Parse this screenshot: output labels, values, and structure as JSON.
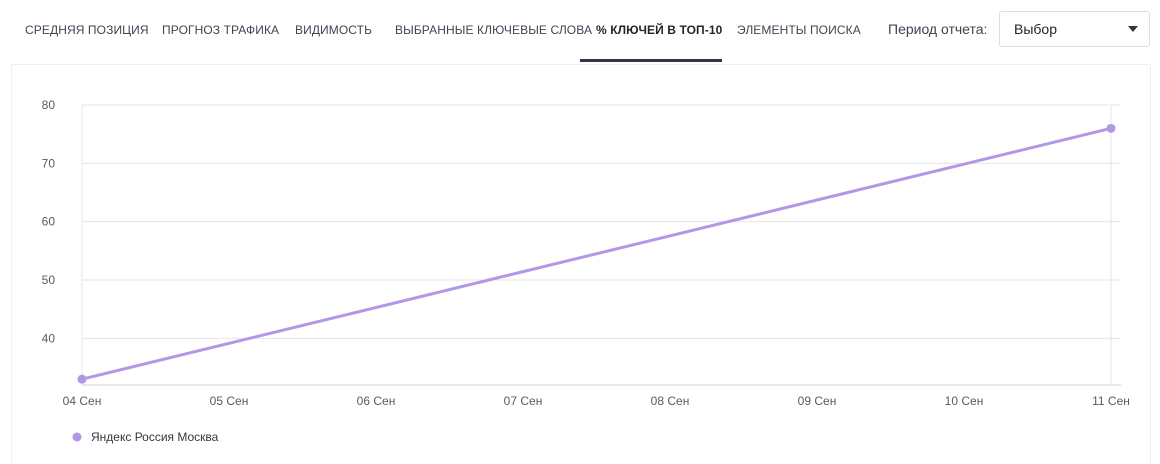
{
  "tabs": [
    {
      "label": "СРЕДНЯЯ ПОЗИЦИЯ",
      "active": false
    },
    {
      "label": "ПРОГНОЗ ТРАФИКА",
      "active": false
    },
    {
      "label": "ВИДИМОСТЬ",
      "active": false
    },
    {
      "label": "ВЫБРАННЫЕ КЛЮЧЕВЫЕ СЛОВА",
      "active": false
    },
    {
      "label": "% КЛЮЧЕЙ В ТОП-10",
      "active": true
    },
    {
      "label": "ЭЛЕМЕНТЫ ПОИСКА",
      "active": false
    }
  ],
  "period": {
    "label": "Период отчета:",
    "selected": "Выбор"
  },
  "chart_data": {
    "type": "line",
    "title": "",
    "xlabel": "",
    "ylabel": "",
    "categories": [
      "04 Сен",
      "05 Сен",
      "06 Сен",
      "07 Сен",
      "08 Сен",
      "09 Сен",
      "10 Сен",
      "11 Сен"
    ],
    "yticks": [
      40,
      50,
      60,
      70,
      80
    ],
    "ylim": [
      32,
      80
    ],
    "grid": true,
    "legend_position": "bottom-left",
    "series": [
      {
        "name": "Яндекс Россия Москва",
        "color": "#b197e6",
        "points": [
          {
            "x": "04 Сен",
            "y": 33
          },
          {
            "x": "11 Сен",
            "y": 76
          }
        ]
      }
    ]
  }
}
